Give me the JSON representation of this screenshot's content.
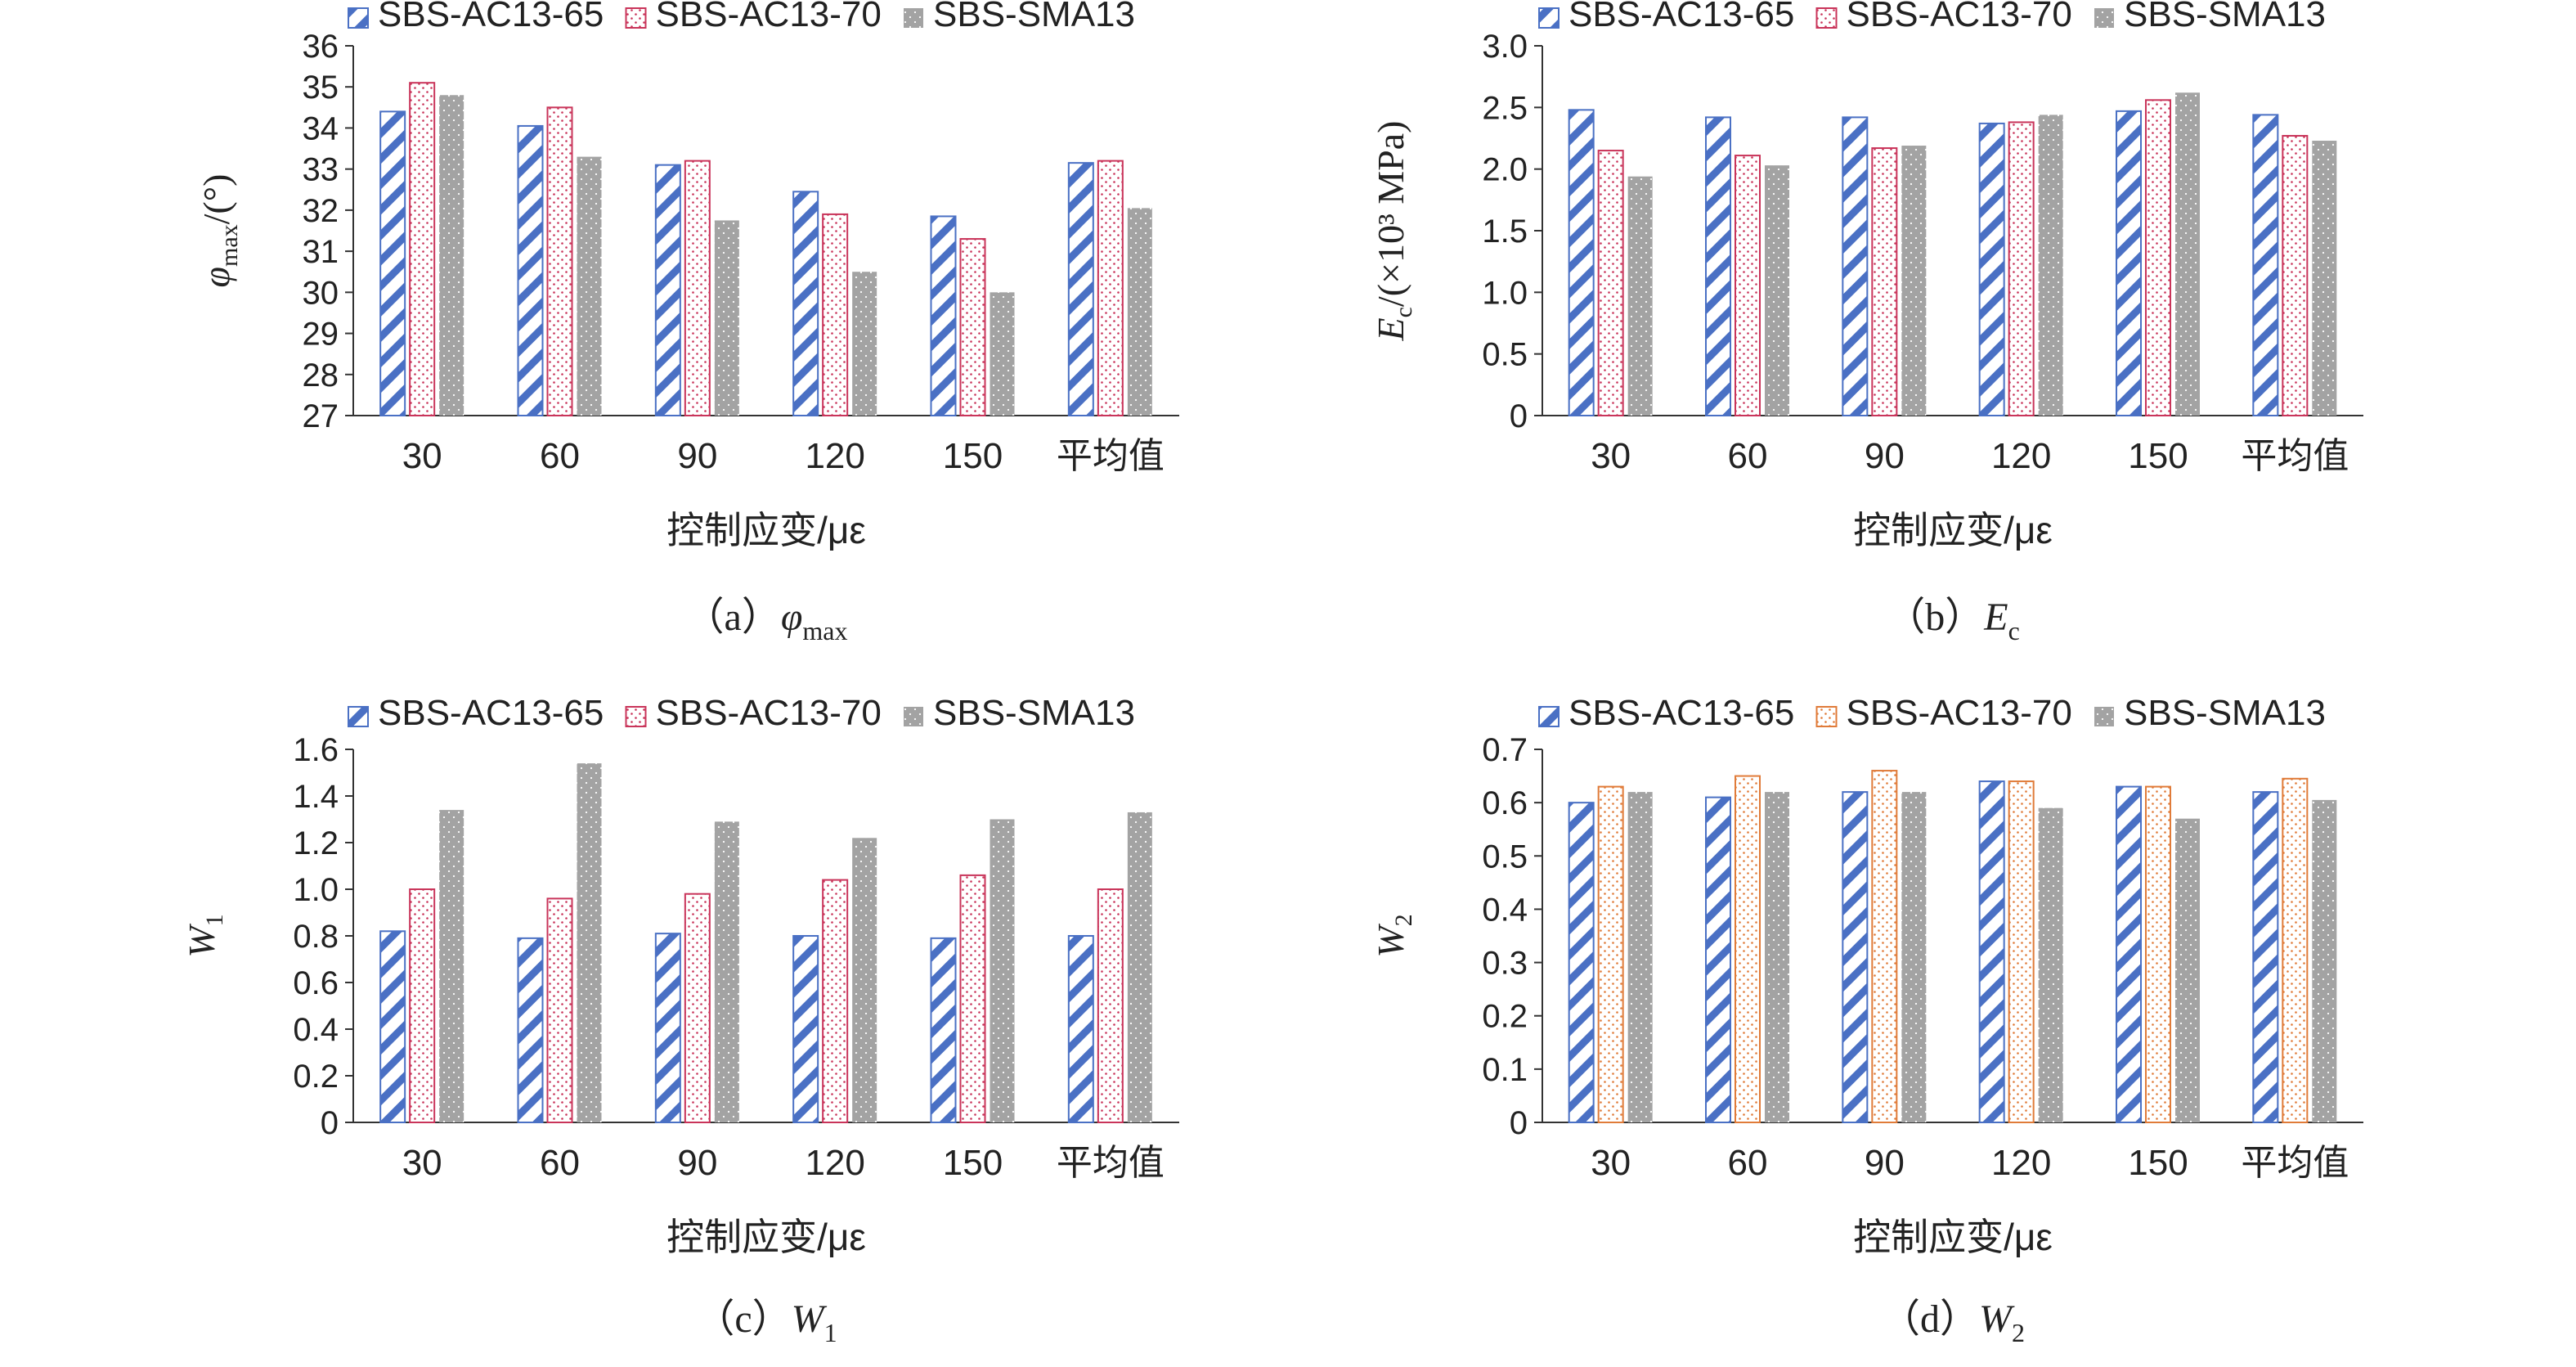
{
  "colors": {
    "series1": "#4a70c4",
    "series2": "#c9345a",
    "series2_panel_d": "#e07b39",
    "series3": "#a3a3a3",
    "axis": "#333333"
  },
  "chart_data": [
    {
      "type": "bar",
      "caption": "（a）φmax",
      "caption_parts": {
        "prefix": "（a）",
        "main": "φ",
        "sub": "max"
      },
      "xlabel": "控制应变/με",
      "ylabel_parts": {
        "main": "φ",
        "sub": "max",
        "rest": "/(°)"
      },
      "categories": [
        "30",
        "60",
        "90",
        "120",
        "150",
        "平均值"
      ],
      "ylim": [
        27,
        36
      ],
      "yticks": [
        "27",
        "28",
        "29",
        "30",
        "31",
        "32",
        "33",
        "34",
        "35",
        "36"
      ],
      "legend_position": "top",
      "series": [
        {
          "name": "SBS-AC13-65",
          "values": [
            34.4,
            34.05,
            33.1,
            32.45,
            31.85,
            33.15
          ]
        },
        {
          "name": "SBS-AC13-70",
          "values": [
            35.1,
            34.5,
            33.2,
            31.9,
            31.3,
            33.2
          ]
        },
        {
          "name": "SBS-SMA13",
          "values": [
            34.8,
            33.3,
            31.75,
            30.5,
            30.0,
            32.05
          ]
        }
      ]
    },
    {
      "type": "bar",
      "caption": "（b）Ec",
      "caption_parts": {
        "prefix": "（b）",
        "main": "E",
        "sub": "c"
      },
      "xlabel": "控制应变/με",
      "ylabel_parts": {
        "main": "E",
        "sub": "c",
        "rest": "/(×10³ MPa)"
      },
      "categories": [
        "30",
        "60",
        "90",
        "120",
        "150",
        "平均值"
      ],
      "ylim": [
        0,
        3.0
      ],
      "yticks": [
        "0",
        "0.5",
        "1.0",
        "1.5",
        "2.0",
        "2.5",
        "3.0"
      ],
      "legend_position": "top",
      "series": [
        {
          "name": "SBS-AC13-65",
          "values": [
            2.48,
            2.42,
            2.42,
            2.37,
            2.47,
            2.44
          ]
        },
        {
          "name": "SBS-AC13-70",
          "values": [
            2.15,
            2.11,
            2.17,
            2.38,
            2.56,
            2.27
          ]
        },
        {
          "name": "SBS-SMA13",
          "values": [
            1.94,
            2.03,
            2.19,
            2.44,
            2.62,
            2.23
          ]
        }
      ]
    },
    {
      "type": "bar",
      "caption": "（c）W1",
      "caption_parts": {
        "prefix": "（c）",
        "main": "W",
        "sub": "1"
      },
      "xlabel": "控制应变/με",
      "ylabel_parts": {
        "main": "W",
        "sub": "1",
        "rest": ""
      },
      "categories": [
        "30",
        "60",
        "90",
        "120",
        "150",
        "平均值"
      ],
      "ylim": [
        0,
        1.6
      ],
      "yticks": [
        "0",
        "0.2",
        "0.4",
        "0.6",
        "0.8",
        "1.0",
        "1.2",
        "1.4",
        "1.6"
      ],
      "legend_position": "top",
      "series": [
        {
          "name": "SBS-AC13-65",
          "values": [
            0.82,
            0.79,
            0.81,
            0.8,
            0.79,
            0.8
          ]
        },
        {
          "name": "SBS-AC13-70",
          "values": [
            1.0,
            0.96,
            0.98,
            1.04,
            1.06,
            1.0
          ]
        },
        {
          "name": "SBS-SMA13",
          "values": [
            1.34,
            1.54,
            1.29,
            1.22,
            1.3,
            1.33
          ]
        }
      ]
    },
    {
      "type": "bar",
      "caption": "（d）W2",
      "caption_parts": {
        "prefix": "（d）",
        "main": "W",
        "sub": "2"
      },
      "xlabel": "控制应变/με",
      "ylabel_parts": {
        "main": "W",
        "sub": "2",
        "rest": ""
      },
      "categories": [
        "30",
        "60",
        "90",
        "120",
        "150",
        "平均值"
      ],
      "ylim": [
        0,
        0.7
      ],
      "yticks": [
        "0",
        "0.1",
        "0.2",
        "0.3",
        "0.4",
        "0.5",
        "0.6",
        "0.7"
      ],
      "legend_position": "top",
      "series": [
        {
          "name": "SBS-AC13-65",
          "values": [
            0.6,
            0.61,
            0.62,
            0.64,
            0.63,
            0.62
          ]
        },
        {
          "name": "SBS-AC13-70",
          "values": [
            0.63,
            0.65,
            0.66,
            0.64,
            0.63,
            0.645
          ]
        },
        {
          "name": "SBS-SMA13",
          "values": [
            0.62,
            0.62,
            0.62,
            0.59,
            0.57,
            0.605
          ]
        }
      ]
    }
  ]
}
